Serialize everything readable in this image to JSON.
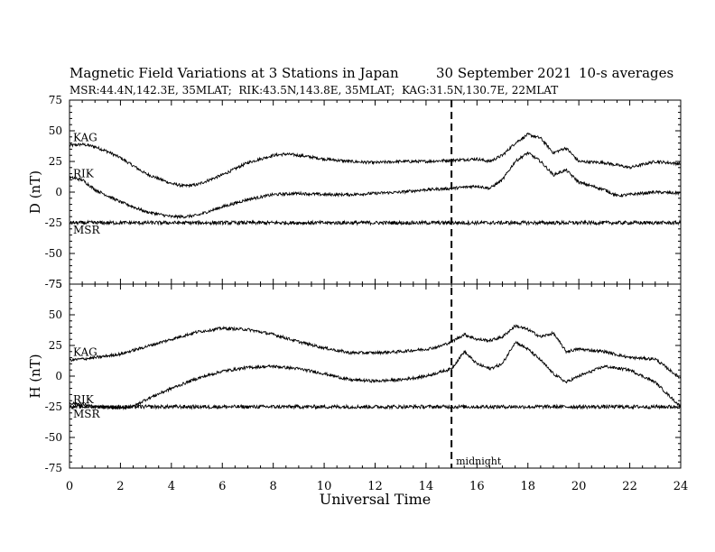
{
  "header": {
    "title": "Magnetic Field Variations at 3 Stations in Japan",
    "date": "30 September 2021",
    "averaging": "10-s averages",
    "stations_line": "MSR:44.4N,142.3E, 35MLAT;  RIK:43.5N,143.8E, 35MLAT;  KAG:31.5N,130.7E, 22MLAT"
  },
  "chart_data": {
    "type": "line",
    "x_axis": {
      "label": "Universal Time",
      "range": [
        0,
        24
      ],
      "ticks": [
        0,
        2,
        4,
        6,
        8,
        10,
        12,
        14,
        16,
        18,
        20,
        22,
        24
      ]
    },
    "marker": {
      "x": 15,
      "label": "midnight",
      "style": "dashed"
    },
    "panels": [
      {
        "name": "D",
        "ylabel": "D (nT)",
        "ylim": [
          -75,
          75
        ],
        "yticks": [
          75,
          50,
          25,
          0,
          -25,
          -50,
          -75
        ],
        "series": [
          {
            "name": "KAG",
            "x": [
              0,
              0.5,
              1,
              1.5,
              2,
              3,
              4,
              4.5,
              5,
              6,
              7,
              8,
              8.5,
              9,
              10,
              11,
              12,
              13,
              14,
              15,
              16,
              16.5,
              17,
              17.5,
              18,
              18.5,
              19,
              19.5,
              20,
              21,
              22,
              23,
              24
            ],
            "y": [
              38,
              39,
              37,
              33,
              28,
              15,
              7,
              5,
              6,
              14,
              24,
              30,
              31,
              30,
              27,
              25,
              24,
              25,
              25,
              26,
              27,
              25,
              30,
              40,
              47,
              44,
              32,
              36,
              25,
              24,
              20,
              25,
              23
            ],
            "noise": 1.2
          },
          {
            "name": "RIK",
            "x": [
              0,
              0.5,
              1,
              2,
              3,
              4,
              4.5,
              5,
              6,
              7,
              8,
              9,
              10,
              11,
              12,
              13,
              14,
              15,
              16,
              16.5,
              17,
              17.5,
              18,
              18.5,
              19,
              19.5,
              20,
              21,
              21.5,
              22,
              23,
              24
            ],
            "y": [
              12,
              10,
              2,
              -8,
              -16,
              -20,
              -20,
              -19,
              -12,
              -6,
              -2,
              -1,
              -2,
              -2,
              -1,
              0,
              2,
              3,
              5,
              3,
              10,
              25,
              32,
              25,
              14,
              18,
              8,
              2,
              -3,
              -2,
              0,
              -1
            ],
            "noise": 1.2
          },
          {
            "name": "MSR",
            "x": [
              0,
              24
            ],
            "y": [
              -25,
              -25
            ],
            "noise": 1.5
          }
        ]
      },
      {
        "name": "H",
        "ylabel": "H (nT)",
        "ylim": [
          -75,
          75
        ],
        "yticks": [
          75,
          50,
          25,
          0,
          -25,
          -50,
          -75
        ],
        "series": [
          {
            "name": "KAG",
            "x": [
              0,
              1,
              2,
              3,
              4,
              5,
              6,
              7,
              8,
              9,
              10,
              11,
              12,
              13,
              14,
              14.5,
              15,
              15.5,
              16,
              16.5,
              17,
              17.5,
              18,
              18.5,
              19,
              19.5,
              20,
              21,
              22,
              23,
              24
            ],
            "y": [
              13,
              15,
              18,
              24,
              30,
              36,
              39,
              38,
              34,
              28,
              23,
              19,
              19,
              20,
              22,
              24,
              28,
              34,
              30,
              29,
              32,
              41,
              38,
              32,
              35,
              20,
              22,
              20,
              15,
              14,
              -2
            ],
            "noise": 1.2
          },
          {
            "name": "RIK",
            "x": [
              0,
              0.5,
              1,
              2,
              2.5,
              3,
              4,
              5,
              6,
              7,
              8,
              9,
              10,
              11,
              12,
              13,
              14,
              15,
              15.5,
              16,
              16.5,
              17,
              17.5,
              18,
              18.5,
              19,
              19.5,
              20,
              21,
              22,
              23,
              24
            ],
            "y": [
              -22,
              -23,
              -25,
              -26,
              -25,
              -19,
              -10,
              -2,
              4,
              7,
              8,
              6,
              2,
              -3,
              -4,
              -3,
              0,
              6,
              20,
              10,
              6,
              10,
              28,
              22,
              13,
              2,
              -5,
              0,
              8,
              5,
              -5,
              -25
            ],
            "noise": 1.2
          },
          {
            "name": "MSR",
            "x": [
              0,
              24
            ],
            "y": [
              -25,
              -25
            ],
            "noise": 1.5
          }
        ]
      }
    ]
  }
}
